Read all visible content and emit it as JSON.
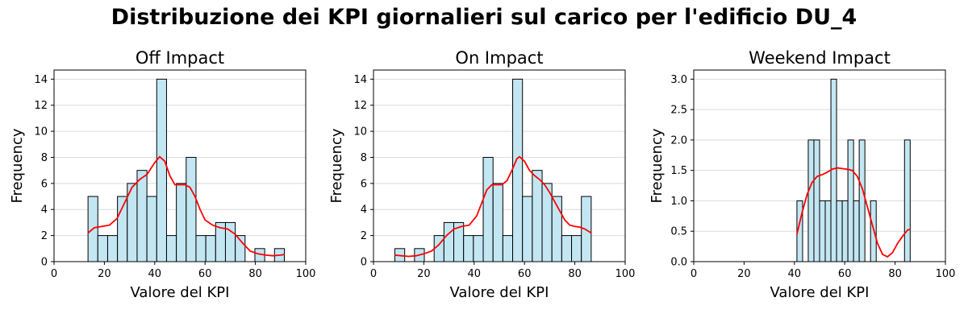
{
  "suptitle": "Distribuzione dei KPI giornalieri sul carico per l'edificio DU_4",
  "colors": {
    "bar_fill": "#c3e6f3",
    "bar_edge": "#000000",
    "kde": "#ff0000",
    "grid": "#dcdcdc"
  },
  "chart_data": [
    {
      "type": "bar",
      "title": "Off Impact",
      "xlabel": "Valore del KPI",
      "ylabel": "Frequency",
      "xlim": [
        0,
        100
      ],
      "ylim": [
        0,
        14.7
      ],
      "xticks": [
        0,
        20,
        40,
        60,
        80,
        100
      ],
      "yticks": [
        0,
        2,
        4,
        6,
        8,
        10,
        12,
        14
      ],
      "ytick_labels": [
        "0",
        "2",
        "4",
        "6",
        "8",
        "10",
        "12",
        "14"
      ],
      "grid": "y",
      "bins": [
        {
          "x0": 13.5,
          "x1": 17.4,
          "count": 5
        },
        {
          "x0": 17.4,
          "x1": 21.3,
          "count": 2
        },
        {
          "x0": 21.3,
          "x1": 25.2,
          "count": 2
        },
        {
          "x0": 25.2,
          "x1": 29.1,
          "count": 5
        },
        {
          "x0": 29.1,
          "x1": 33.0,
          "count": 6
        },
        {
          "x0": 33.0,
          "x1": 36.9,
          "count": 7
        },
        {
          "x0": 36.9,
          "x1": 40.8,
          "count": 5
        },
        {
          "x0": 40.8,
          "x1": 44.7,
          "count": 14
        },
        {
          "x0": 44.7,
          "x1": 48.6,
          "count": 2
        },
        {
          "x0": 48.6,
          "x1": 52.5,
          "count": 6
        },
        {
          "x0": 52.5,
          "x1": 56.4,
          "count": 8
        },
        {
          "x0": 56.4,
          "x1": 60.3,
          "count": 2
        },
        {
          "x0": 60.3,
          "x1": 64.2,
          "count": 2
        },
        {
          "x0": 64.2,
          "x1": 68.1,
          "count": 3
        },
        {
          "x0": 68.1,
          "x1": 72.0,
          "count": 3
        },
        {
          "x0": 72.0,
          "x1": 75.9,
          "count": 2
        },
        {
          "x0": 75.9,
          "x1": 79.8,
          "count": 0
        },
        {
          "x0": 79.8,
          "x1": 83.7,
          "count": 1
        },
        {
          "x0": 83.7,
          "x1": 87.6,
          "count": 0
        },
        {
          "x0": 87.6,
          "x1": 91.5,
          "count": 1
        }
      ],
      "kde": {
        "x": [
          13.5,
          16,
          19,
          22,
          25,
          28,
          31,
          34,
          37,
          40,
          42,
          44,
          46,
          48,
          50,
          52,
          54,
          56,
          58,
          60,
          63,
          66,
          69,
          72,
          75,
          78,
          81,
          84,
          87,
          90,
          91.5
        ],
        "y": [
          2.2,
          2.6,
          2.7,
          2.8,
          3.3,
          4.5,
          5.7,
          6.3,
          6.7,
          7.6,
          8.05,
          7.7,
          6.6,
          5.9,
          5.9,
          5.9,
          5.7,
          5.0,
          4.0,
          3.2,
          2.8,
          2.6,
          2.5,
          2.1,
          1.4,
          0.8,
          0.6,
          0.5,
          0.45,
          0.5,
          0.55
        ]
      }
    },
    {
      "type": "bar",
      "title": "On Impact",
      "xlabel": "Valore del KPI",
      "ylabel": "Frequency",
      "xlim": [
        0,
        100
      ],
      "ylim": [
        0,
        14.7
      ],
      "xticks": [
        0,
        20,
        40,
        60,
        80,
        100
      ],
      "yticks": [
        0,
        2,
        4,
        6,
        8,
        10,
        12,
        14
      ],
      "ytick_labels": [
        "0",
        "2",
        "4",
        "6",
        "8",
        "10",
        "12",
        "14"
      ],
      "grid": "y",
      "bins": [
        {
          "x0": 8.5,
          "x1": 12.4,
          "count": 1
        },
        {
          "x0": 12.4,
          "x1": 16.3,
          "count": 0
        },
        {
          "x0": 16.3,
          "x1": 20.2,
          "count": 1
        },
        {
          "x0": 20.2,
          "x1": 24.1,
          "count": 0
        },
        {
          "x0": 24.1,
          "x1": 28.0,
          "count": 2
        },
        {
          "x0": 28.0,
          "x1": 31.9,
          "count": 3
        },
        {
          "x0": 31.9,
          "x1": 35.8,
          "count": 3
        },
        {
          "x0": 35.8,
          "x1": 39.7,
          "count": 2
        },
        {
          "x0": 39.7,
          "x1": 43.6,
          "count": 2
        },
        {
          "x0": 43.6,
          "x1": 47.5,
          "count": 8
        },
        {
          "x0": 47.5,
          "x1": 51.4,
          "count": 6
        },
        {
          "x0": 51.4,
          "x1": 55.3,
          "count": 2
        },
        {
          "x0": 55.3,
          "x1": 59.2,
          "count": 14
        },
        {
          "x0": 59.2,
          "x1": 63.1,
          "count": 5
        },
        {
          "x0": 63.1,
          "x1": 67.0,
          "count": 7
        },
        {
          "x0": 67.0,
          "x1": 70.9,
          "count": 6
        },
        {
          "x0": 70.9,
          "x1": 74.8,
          "count": 5
        },
        {
          "x0": 74.8,
          "x1": 78.7,
          "count": 2
        },
        {
          "x0": 78.7,
          "x1": 82.6,
          "count": 2
        },
        {
          "x0": 82.6,
          "x1": 86.5,
          "count": 5
        }
      ],
      "kde": {
        "x": [
          8.5,
          11,
          14,
          17,
          20,
          23,
          26,
          29,
          32,
          35,
          38,
          41,
          43,
          45,
          47,
          49,
          51,
          53,
          55,
          57,
          58,
          60,
          62,
          64,
          66,
          68,
          70,
          72,
          74,
          76,
          78,
          80,
          82,
          84,
          86.5
        ],
        "y": [
          0.5,
          0.45,
          0.4,
          0.45,
          0.6,
          0.8,
          1.3,
          2.0,
          2.5,
          2.7,
          2.8,
          3.5,
          4.5,
          5.5,
          5.9,
          5.9,
          5.9,
          6.2,
          7.0,
          7.9,
          8.05,
          7.7,
          7.0,
          6.6,
          6.3,
          5.9,
          5.3,
          4.6,
          3.9,
          3.2,
          2.8,
          2.7,
          2.65,
          2.5,
          2.2
        ]
      }
    },
    {
      "type": "bar",
      "title": "Weekend Impact",
      "xlabel": "Valore del KPI",
      "ylabel": "Frequency",
      "xlim": [
        0,
        100
      ],
      "ylim": [
        0,
        3.15
      ],
      "xticks": [
        0,
        20,
        40,
        60,
        80,
        100
      ],
      "yticks": [
        0,
        0.5,
        1.0,
        1.5,
        2.0,
        2.5,
        3.0
      ],
      "ytick_labels": [
        "0.0",
        "0.5",
        "1.0",
        "1.5",
        "2.0",
        "2.5",
        "3.0"
      ],
      "grid": "y",
      "bins": [
        {
          "x0": 41.0,
          "x1": 43.25,
          "count": 1
        },
        {
          "x0": 43.25,
          "x1": 45.5,
          "count": 0
        },
        {
          "x0": 45.5,
          "x1": 47.75,
          "count": 2
        },
        {
          "x0": 47.75,
          "x1": 50.0,
          "count": 2
        },
        {
          "x0": 50.0,
          "x1": 52.25,
          "count": 1
        },
        {
          "x0": 52.25,
          "x1": 54.5,
          "count": 1
        },
        {
          "x0": 54.5,
          "x1": 56.75,
          "count": 3
        },
        {
          "x0": 56.75,
          "x1": 59.0,
          "count": 1
        },
        {
          "x0": 59.0,
          "x1": 61.25,
          "count": 1
        },
        {
          "x0": 61.25,
          "x1": 63.5,
          "count": 2
        },
        {
          "x0": 63.5,
          "x1": 65.75,
          "count": 1
        },
        {
          "x0": 65.75,
          "x1": 68.0,
          "count": 2
        },
        {
          "x0": 68.0,
          "x1": 70.25,
          "count": 0
        },
        {
          "x0": 70.25,
          "x1": 72.5,
          "count": 1
        },
        {
          "x0": 72.5,
          "x1": 74.75,
          "count": 0
        },
        {
          "x0": 74.75,
          "x1": 77.0,
          "count": 0
        },
        {
          "x0": 77.0,
          "x1": 79.25,
          "count": 0
        },
        {
          "x0": 79.25,
          "x1": 81.5,
          "count": 0
        },
        {
          "x0": 81.5,
          "x1": 83.75,
          "count": 0
        },
        {
          "x0": 83.75,
          "x1": 86.0,
          "count": 2
        }
      ],
      "kde": {
        "x": [
          41,
          43,
          45,
          47,
          49,
          51,
          53,
          55,
          57,
          59,
          61,
          63,
          65,
          67,
          69,
          71,
          73,
          75,
          77,
          79,
          81,
          83,
          85,
          86
        ],
        "y": [
          0.45,
          0.8,
          1.1,
          1.3,
          1.4,
          1.43,
          1.47,
          1.52,
          1.54,
          1.53,
          1.52,
          1.5,
          1.4,
          1.2,
          0.9,
          0.6,
          0.3,
          0.12,
          0.08,
          0.15,
          0.3,
          0.42,
          0.52,
          0.53
        ]
      }
    }
  ]
}
